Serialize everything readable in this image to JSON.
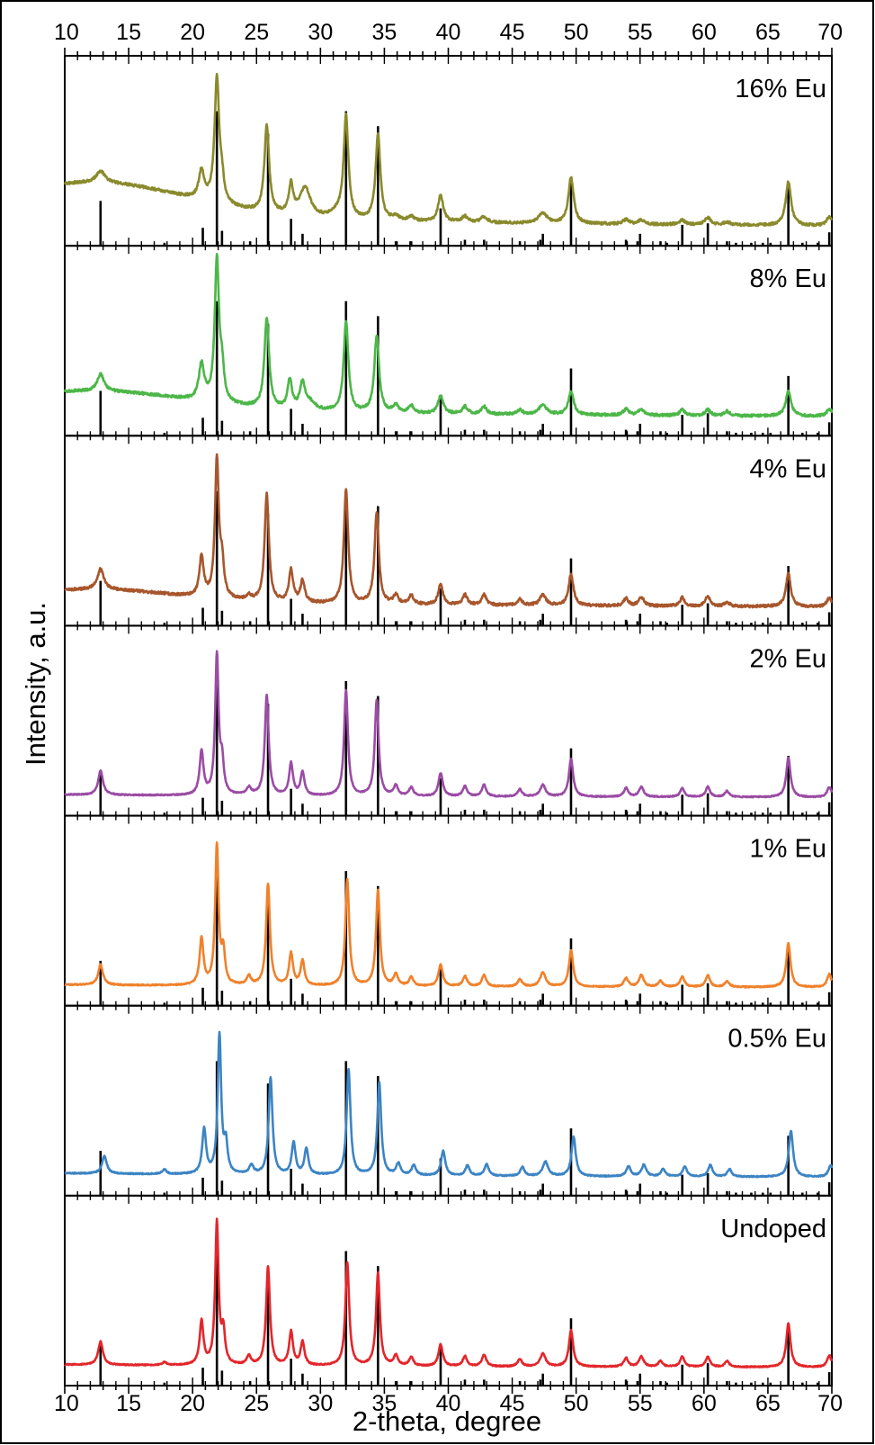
{
  "chart_data": {
    "type": "line",
    "xlabel": "2-theta, degree",
    "ylabel": "Intensity, a.u.",
    "xlim": [
      10,
      70
    ],
    "x_ticks": [
      "10",
      "15",
      "20",
      "25",
      "30",
      "35",
      "40",
      "45",
      "50",
      "55",
      "60",
      "65",
      "70"
    ],
    "grid": false,
    "legend": "none",
    "reference_pattern": {
      "color": "#000000",
      "peaks": [
        [
          12.8,
          0.3
        ],
        [
          20.8,
          0.12
        ],
        [
          21.9,
          0.9
        ],
        [
          22.3,
          0.1
        ],
        [
          25.9,
          0.75
        ],
        [
          27.7,
          0.18
        ],
        [
          28.6,
          0.08
        ],
        [
          32.0,
          0.9
        ],
        [
          34.5,
          0.8
        ],
        [
          39.4,
          0.25
        ],
        [
          47.4,
          0.08
        ],
        [
          49.6,
          0.45
        ],
        [
          55.0,
          0.08
        ],
        [
          58.3,
          0.14
        ],
        [
          60.3,
          0.15
        ],
        [
          66.6,
          0.4
        ],
        [
          69.8,
          0.09
        ],
        [
          17.8,
          0.02
        ],
        [
          24.5,
          0.03
        ],
        [
          35.9,
          0.03
        ],
        [
          37.1,
          0.03
        ],
        [
          41.3,
          0.04
        ],
        [
          42.8,
          0.04
        ],
        [
          45.6,
          0.03
        ],
        [
          47.2,
          0.04
        ],
        [
          53.9,
          0.04
        ],
        [
          54.8,
          0.03
        ],
        [
          56.6,
          0.03
        ],
        [
          57.1,
          0.02
        ],
        [
          61.8,
          0.03
        ],
        [
          62.5,
          0.02
        ],
        [
          63.7,
          0.02
        ],
        [
          64.6,
          0.02
        ],
        [
          65.2,
          0.02
        ],
        [
          67.7,
          0.02
        ],
        [
          68.9,
          0.02
        ]
      ]
    },
    "series": [
      {
        "name": "16% Eu",
        "color": "#8a8a2c",
        "baseline": 0.1,
        "bumps": [
          [
            12.8,
            0.7,
            7,
            0.22
          ]
        ],
        "peaks": [
          [
            12.8,
            0.08,
            0.4
          ],
          [
            20.7,
            0.2,
            0.25
          ],
          [
            21.9,
            0.86,
            0.22
          ],
          [
            22.3,
            0.12,
            0.18
          ],
          [
            25.8,
            0.6,
            0.22
          ],
          [
            27.7,
            0.2,
            0.2
          ],
          [
            28.8,
            0.2,
            0.5
          ],
          [
            31.3,
            0.04,
            0.6
          ],
          [
            32.0,
            0.7,
            0.22
          ],
          [
            34.5,
            0.6,
            0.22
          ],
          [
            35.9,
            0.03,
            0.3
          ],
          [
            37.1,
            0.03,
            0.3
          ],
          [
            39.4,
            0.18,
            0.25
          ],
          [
            41.3,
            0.04,
            0.3
          ],
          [
            42.8,
            0.04,
            0.3
          ],
          [
            47.4,
            0.07,
            0.4
          ],
          [
            49.6,
            0.32,
            0.25
          ],
          [
            53.9,
            0.03,
            0.3
          ],
          [
            55.1,
            0.03,
            0.3
          ],
          [
            58.3,
            0.03,
            0.3
          ],
          [
            60.3,
            0.05,
            0.3
          ],
          [
            61.8,
            0.02,
            0.3
          ],
          [
            66.6,
            0.3,
            0.25
          ],
          [
            69.8,
            0.06,
            0.25
          ]
        ]
      },
      {
        "name": "8% Eu",
        "color": "#4cb748",
        "baseline": 0.07,
        "bumps": [
          [
            12.8,
            0.55,
            7,
            0.12
          ]
        ],
        "peaks": [
          [
            12.8,
            0.12,
            0.3
          ],
          [
            20.7,
            0.25,
            0.25
          ],
          [
            21.9,
            0.98,
            0.2
          ],
          [
            22.3,
            0.2,
            0.18
          ],
          [
            25.8,
            0.62,
            0.22
          ],
          [
            27.6,
            0.2,
            0.2
          ],
          [
            28.6,
            0.18,
            0.25
          ],
          [
            29.2,
            0.05,
            0.5
          ],
          [
            32.0,
            0.62,
            0.22
          ],
          [
            34.4,
            0.53,
            0.22
          ],
          [
            35.9,
            0.05,
            0.25
          ],
          [
            37.1,
            0.05,
            0.25
          ],
          [
            39.4,
            0.12,
            0.25
          ],
          [
            41.3,
            0.05,
            0.25
          ],
          [
            42.8,
            0.05,
            0.25
          ],
          [
            45.6,
            0.03,
            0.25
          ],
          [
            47.4,
            0.07,
            0.35
          ],
          [
            49.6,
            0.16,
            0.25
          ],
          [
            53.9,
            0.04,
            0.25
          ],
          [
            55.1,
            0.04,
            0.3
          ],
          [
            58.3,
            0.04,
            0.25
          ],
          [
            60.3,
            0.04,
            0.25
          ],
          [
            61.8,
            0.03,
            0.25
          ],
          [
            66.6,
            0.17,
            0.25
          ],
          [
            69.8,
            0.05,
            0.25
          ]
        ]
      },
      {
        "name": "4% Eu",
        "color": "#a7562c",
        "baseline": 0.05,
        "bumps": [
          [
            12.8,
            0.45,
            6,
            0.08
          ]
        ],
        "peaks": [
          [
            12.8,
            0.14,
            0.3
          ],
          [
            20.7,
            0.28,
            0.2
          ],
          [
            21.9,
            0.95,
            0.18
          ],
          [
            22.3,
            0.22,
            0.18
          ],
          [
            24.4,
            0.03,
            0.25
          ],
          [
            25.8,
            0.74,
            0.2
          ],
          [
            27.7,
            0.22,
            0.2
          ],
          [
            28.6,
            0.15,
            0.2
          ],
          [
            32.0,
            0.79,
            0.2
          ],
          [
            34.4,
            0.63,
            0.2
          ],
          [
            35.9,
            0.06,
            0.22
          ],
          [
            37.1,
            0.06,
            0.22
          ],
          [
            39.4,
            0.14,
            0.22
          ],
          [
            41.3,
            0.07,
            0.22
          ],
          [
            42.8,
            0.07,
            0.22
          ],
          [
            45.6,
            0.04,
            0.22
          ],
          [
            47.4,
            0.07,
            0.3
          ],
          [
            49.6,
            0.22,
            0.22
          ],
          [
            53.9,
            0.05,
            0.22
          ],
          [
            55.1,
            0.06,
            0.25
          ],
          [
            58.3,
            0.06,
            0.22
          ],
          [
            60.3,
            0.07,
            0.22
          ],
          [
            61.8,
            0.03,
            0.22
          ],
          [
            66.6,
            0.23,
            0.22
          ],
          [
            69.8,
            0.06,
            0.22
          ]
        ]
      },
      {
        "name": "2% Eu",
        "color": "#9b4ca4",
        "baseline": 0.02,
        "bumps": [],
        "peaks": [
          [
            12.8,
            0.17,
            0.22
          ],
          [
            20.7,
            0.3,
            0.18
          ],
          [
            21.9,
            0.96,
            0.16
          ],
          [
            22.3,
            0.21,
            0.16
          ],
          [
            24.4,
            0.05,
            0.22
          ],
          [
            25.8,
            0.69,
            0.18
          ],
          [
            27.7,
            0.22,
            0.18
          ],
          [
            28.6,
            0.16,
            0.18
          ],
          [
            32.0,
            0.73,
            0.18
          ],
          [
            34.4,
            0.66,
            0.18
          ],
          [
            35.9,
            0.07,
            0.2
          ],
          [
            37.1,
            0.06,
            0.2
          ],
          [
            39.4,
            0.16,
            0.2
          ],
          [
            41.3,
            0.07,
            0.2
          ],
          [
            42.8,
            0.08,
            0.2
          ],
          [
            45.6,
            0.05,
            0.2
          ],
          [
            47.4,
            0.08,
            0.25
          ],
          [
            49.6,
            0.26,
            0.2
          ],
          [
            53.9,
            0.06,
            0.2
          ],
          [
            55.1,
            0.07,
            0.22
          ],
          [
            58.3,
            0.06,
            0.2
          ],
          [
            60.3,
            0.07,
            0.2
          ],
          [
            61.8,
            0.04,
            0.2
          ],
          [
            66.6,
            0.27,
            0.2
          ],
          [
            69.8,
            0.07,
            0.2
          ]
        ]
      },
      {
        "name": "1% Eu",
        "color": "#f0812b",
        "baseline": 0.02,
        "bumps": [],
        "peaks": [
          [
            12.8,
            0.14,
            0.22
          ],
          [
            20.7,
            0.32,
            0.18
          ],
          [
            21.9,
            0.96,
            0.16
          ],
          [
            22.4,
            0.22,
            0.16
          ],
          [
            24.4,
            0.06,
            0.2
          ],
          [
            25.9,
            0.7,
            0.18
          ],
          [
            27.7,
            0.22,
            0.18
          ],
          [
            28.6,
            0.17,
            0.18
          ],
          [
            32.1,
            0.73,
            0.18
          ],
          [
            34.5,
            0.66,
            0.18
          ],
          [
            35.9,
            0.08,
            0.2
          ],
          [
            37.1,
            0.06,
            0.2
          ],
          [
            39.4,
            0.15,
            0.2
          ],
          [
            41.3,
            0.07,
            0.2
          ],
          [
            42.8,
            0.08,
            0.2
          ],
          [
            45.6,
            0.05,
            0.2
          ],
          [
            47.4,
            0.1,
            0.25
          ],
          [
            49.6,
            0.25,
            0.2
          ],
          [
            53.9,
            0.06,
            0.2
          ],
          [
            55.1,
            0.08,
            0.22
          ],
          [
            56.6,
            0.04,
            0.2
          ],
          [
            58.3,
            0.07,
            0.2
          ],
          [
            60.3,
            0.08,
            0.2
          ],
          [
            61.8,
            0.04,
            0.2
          ],
          [
            66.6,
            0.3,
            0.2
          ],
          [
            69.8,
            0.09,
            0.2
          ]
        ]
      },
      {
        "name": "0.5% Eu",
        "color": "#3c84c4",
        "baseline": 0.03,
        "bumps": [],
        "peaks": [
          [
            13.1,
            0.12,
            0.22
          ],
          [
            17.8,
            0.03,
            0.2
          ],
          [
            20.9,
            0.31,
            0.18
          ],
          [
            22.1,
            0.96,
            0.16
          ],
          [
            22.6,
            0.2,
            0.16
          ],
          [
            24.6,
            0.06,
            0.2
          ],
          [
            26.1,
            0.67,
            0.18
          ],
          [
            27.9,
            0.22,
            0.18
          ],
          [
            28.9,
            0.18,
            0.18
          ],
          [
            32.2,
            0.73,
            0.18
          ],
          [
            34.6,
            0.64,
            0.18
          ],
          [
            36.1,
            0.08,
            0.2
          ],
          [
            37.3,
            0.07,
            0.2
          ],
          [
            39.6,
            0.17,
            0.2
          ],
          [
            41.5,
            0.07,
            0.2
          ],
          [
            43.0,
            0.08,
            0.2
          ],
          [
            45.8,
            0.06,
            0.2
          ],
          [
            47.6,
            0.1,
            0.25
          ],
          [
            49.8,
            0.27,
            0.2
          ],
          [
            54.1,
            0.07,
            0.2
          ],
          [
            55.3,
            0.08,
            0.22
          ],
          [
            56.8,
            0.05,
            0.2
          ],
          [
            58.5,
            0.07,
            0.2
          ],
          [
            60.5,
            0.08,
            0.2
          ],
          [
            62.0,
            0.05,
            0.2
          ],
          [
            66.8,
            0.32,
            0.2
          ],
          [
            69.9,
            0.08,
            0.2
          ]
        ]
      },
      {
        "name": "Undoped",
        "color": "#e3262b",
        "baseline": 0.02,
        "bumps": [],
        "peaks": [
          [
            12.8,
            0.16,
            0.22
          ],
          [
            17.8,
            0.02,
            0.2
          ],
          [
            20.7,
            0.3,
            0.18
          ],
          [
            21.9,
            0.98,
            0.16
          ],
          [
            22.4,
            0.22,
            0.16
          ],
          [
            24.4,
            0.06,
            0.2
          ],
          [
            25.9,
            0.68,
            0.18
          ],
          [
            27.7,
            0.23,
            0.18
          ],
          [
            28.6,
            0.16,
            0.18
          ],
          [
            32.1,
            0.71,
            0.18
          ],
          [
            34.5,
            0.64,
            0.18
          ],
          [
            35.9,
            0.07,
            0.2
          ],
          [
            37.1,
            0.06,
            0.2
          ],
          [
            39.4,
            0.15,
            0.2
          ],
          [
            41.3,
            0.07,
            0.2
          ],
          [
            42.8,
            0.08,
            0.2
          ],
          [
            45.6,
            0.05,
            0.2
          ],
          [
            47.4,
            0.09,
            0.25
          ],
          [
            49.6,
            0.25,
            0.2
          ],
          [
            53.9,
            0.06,
            0.2
          ],
          [
            55.1,
            0.07,
            0.22
          ],
          [
            56.6,
            0.04,
            0.2
          ],
          [
            58.3,
            0.07,
            0.2
          ],
          [
            60.3,
            0.07,
            0.2
          ],
          [
            61.8,
            0.04,
            0.2
          ],
          [
            66.6,
            0.3,
            0.2
          ],
          [
            69.8,
            0.08,
            0.2
          ]
        ]
      }
    ]
  }
}
